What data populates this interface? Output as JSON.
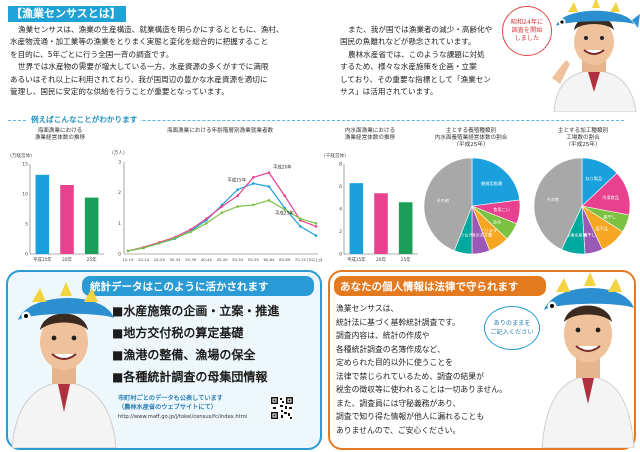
{
  "intro": {
    "title": "【漁業センサスとは】",
    "left_lines": [
      "漁業センサスは、漁業の生産構造、就業構造を明らかにするとともに、漁村、",
      "水産物流通・加工業等の漁業をとりまく実態と変化を総合的に把握すること",
      "を目的に、5年ごとに行う全国一斉の調査です。",
      "世界では水産物の需要が増大している一方、水産資源の多くがすでに満限",
      "あるいはそれ以上に利用されており、我が国周辺の豊かな水産資源を適切に",
      "管理し、国民に安定的な供給を行うことが重要となっています。"
    ],
    "right_lines": [
      "また、我が国では漁業者の減少・高齢化や",
      "国民の魚離れなどが懸念されています。",
      "農林水産省では、このような課題に対処",
      "するため、様々な水産施策を企画・立案",
      "しており、その重要な指標として「漁業セン",
      "サス」は活用されています。"
    ],
    "speech_lines": [
      "昭和24年に",
      "調査を開始",
      "しました"
    ]
  },
  "examples": {
    "label": "例えばこんなことがわかります"
  },
  "chart_data": [
    {
      "type": "bar",
      "title": "海面漁業における\n漁業経営体数の推移",
      "unit": "(万経営体)",
      "yticks": [
        "15",
        "10",
        "5",
        "0"
      ],
      "ylim": [
        0,
        15
      ],
      "categories": [
        "平成15年",
        "20年",
        "25年"
      ],
      "values": [
        13.2,
        11.5,
        9.4
      ],
      "colors": [
        "#1aa0dc",
        "#e8418f",
        "#1a9e5a"
      ]
    },
    {
      "type": "line",
      "title": "海面漁業における年齢階層別漁業就業者数",
      "unit": "(万人)",
      "yticks": [
        "3",
        "2",
        "1",
        "0"
      ],
      "ylim": [
        0,
        3
      ],
      "categories": [
        "15-19",
        "20-24",
        "25-29",
        "30-34",
        "35-39",
        "40-44",
        "45-49",
        "50-54",
        "55-59",
        "60-64",
        "65-69",
        "70-74",
        "75以上(歳)"
      ],
      "series": [
        {
          "name": "平成15年",
          "color": "#1aa0dc",
          "values": [
            0.1,
            0.2,
            0.35,
            0.5,
            0.75,
            1.1,
            1.6,
            2.1,
            2.3,
            2.2,
            1.5,
            0.9,
            0.6
          ]
        },
        {
          "name": "平成20年",
          "color": "#e8418f",
          "values": [
            0.1,
            0.22,
            0.38,
            0.55,
            0.8,
            1.15,
            1.55,
            1.9,
            2.5,
            2.65,
            1.9,
            1.1,
            0.9
          ]
        },
        {
          "name": "平成25年",
          "color": "#7cc242",
          "values": [
            0.1,
            0.2,
            0.35,
            0.52,
            0.72,
            1.0,
            1.35,
            1.55,
            1.6,
            1.75,
            1.45,
            1.15,
            1.0
          ]
        }
      ],
      "labels": [
        "平成15年",
        "平成20年",
        "平成25年"
      ]
    },
    {
      "type": "bar",
      "title": "内水面漁業における\n漁業経営体数の推移",
      "unit": "(千経営体)",
      "yticks": [
        "8",
        "6",
        "4",
        "2",
        "0"
      ],
      "ylim": [
        0,
        8
      ],
      "categories": [
        "平成15年",
        "20年",
        "25年"
      ],
      "values": [
        6.3,
        5.4,
        4.6
      ],
      "colors": [
        "#1aa0dc",
        "#e8418f",
        "#1a9e5a"
      ]
    },
    {
      "type": "pie",
      "title": "主とする養殖種類別\n内水面養殖業経営体数の割合\n（平成25年）",
      "slices": [
        {
          "label": "観賞用魚類",
          "value": 23,
          "color": "#1aa0dc"
        },
        {
          "label": "食用こい",
          "value": 8,
          "color": "#e8418f"
        },
        {
          "label": "あゆ",
          "value": 6,
          "color": "#7cc242"
        },
        {
          "label": "にじます",
          "value": 7,
          "color": "#f5a623"
        },
        {
          "label": "その他のます類",
          "value": 6,
          "color": "#9b59b6"
        },
        {
          "label": "うなぎ",
          "value": 6,
          "color": "#00a99d"
        },
        {
          "label": "その他",
          "value": 44,
          "color": "#a8a8a8"
        }
      ]
    },
    {
      "type": "pie",
      "title": "主とする加工種類別\n工場数の割合\n（平成25年）",
      "slices": [
        {
          "label": "ねり製品",
          "value": 13,
          "color": "#1aa0dc"
        },
        {
          "label": "冷凍食品",
          "value": 15,
          "color": "#e8418f"
        },
        {
          "label": "素干し",
          "value": 6,
          "color": "#7cc242"
        },
        {
          "label": "塩干品",
          "value": 9,
          "color": "#f5a623"
        },
        {
          "label": "煮干し",
          "value": 6,
          "color": "#9b59b6"
        },
        {
          "label": "冷凍水産物",
          "value": 8,
          "color": "#00a99d"
        },
        {
          "label": "その他",
          "value": 43,
          "color": "#a8a8a8"
        }
      ]
    }
  ],
  "uses": {
    "title": "統計データはこのように活かされます",
    "items": [
      "■水産施策の企画・立案・推進",
      "■地方交付税の算定基礎",
      "■漁港の整備、漁場の保全",
      "■各種統計調査の母集団情報"
    ],
    "note_lines": [
      "市町村ごとのデータも公表しています",
      "（農林水産省のウェブサイトにて）"
    ],
    "url": "http://www.maff.go.jp/j/tokei/census/fc/index.html"
  },
  "privacy": {
    "title": "あなたの個人情報は法律で守られます",
    "lines": [
      "漁業センサスは、",
      "統計法に基づく基幹統計調査です。",
      "調査内容は、統計の作成や",
      "各種統計調査の名簿作成など、",
      "定められた目的以外に使うことを",
      "法律で禁じられているため、調査の結果が",
      "税金の徴収等に使われることは一切ありません。",
      "また、調査員には守秘義務があり、",
      "調査で知り得た情報が他人に漏れることも",
      "ありませんので、ご安心ください。"
    ],
    "speech_lines": [
      "ありのままを",
      "ご記入ください"
    ]
  }
}
